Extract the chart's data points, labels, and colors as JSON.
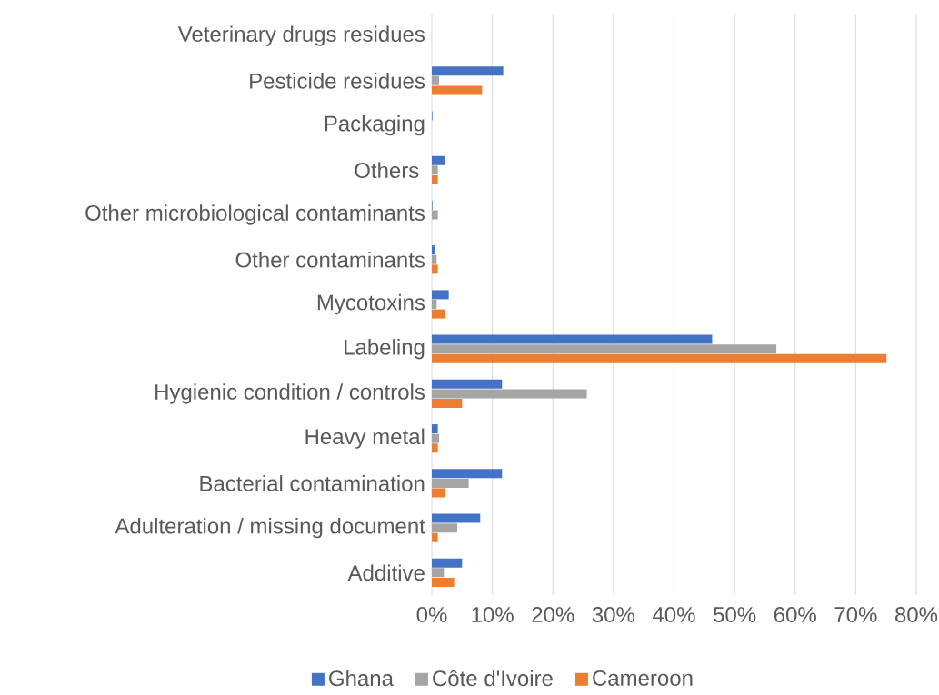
{
  "chart_data": {
    "type": "bar",
    "orientation": "horizontal",
    "categories": [
      "Veterinary drugs residues",
      "Pesticide residues",
      "Packaging",
      "Others ",
      "Other microbiological contaminants",
      "Other contaminants",
      "Mycotoxins",
      "Labeling",
      "Hygienic condition / controls",
      "Heavy metal",
      "Bacterial contamination",
      "Adulteration / missing document",
      "Additive"
    ],
    "series": [
      {
        "name": "Ghana",
        "color": "#4472c4",
        "values": [
          0,
          11.8,
          0.1,
          2.1,
          0.1,
          0.5,
          2.8,
          46.3,
          11.6,
          1.0,
          11.6,
          8.0,
          5.0
        ]
      },
      {
        "name": "Côte d'Ivoire",
        "color": "#a5a5a5",
        "values": [
          0,
          1.2,
          0,
          1.0,
          1.0,
          0.8,
          0.8,
          56.9,
          25.6,
          1.2,
          6.1,
          4.2,
          2.0
        ]
      },
      {
        "name": "Cameroon",
        "color": "#ed7d31",
        "values": [
          0,
          8.3,
          0,
          1.0,
          0,
          1.0,
          2.1,
          75.1,
          5.0,
          1.0,
          2.1,
          1.0,
          3.7
        ]
      }
    ],
    "xlim": [
      0,
      80
    ],
    "xticks": [
      {
        "value": 0,
        "label": "0%"
      },
      {
        "value": 10,
        "label": "10%"
      },
      {
        "value": 20,
        "label": "20%"
      },
      {
        "value": 30,
        "label": "30%"
      },
      {
        "value": 40,
        "label": "40%"
      },
      {
        "value": 50,
        "label": "50%"
      },
      {
        "value": 60,
        "label": "60%"
      },
      {
        "value": 70,
        "label": "70%"
      },
      {
        "value": 80,
        "label": "80%"
      }
    ],
    "grid": "x",
    "legend": "bottom"
  }
}
